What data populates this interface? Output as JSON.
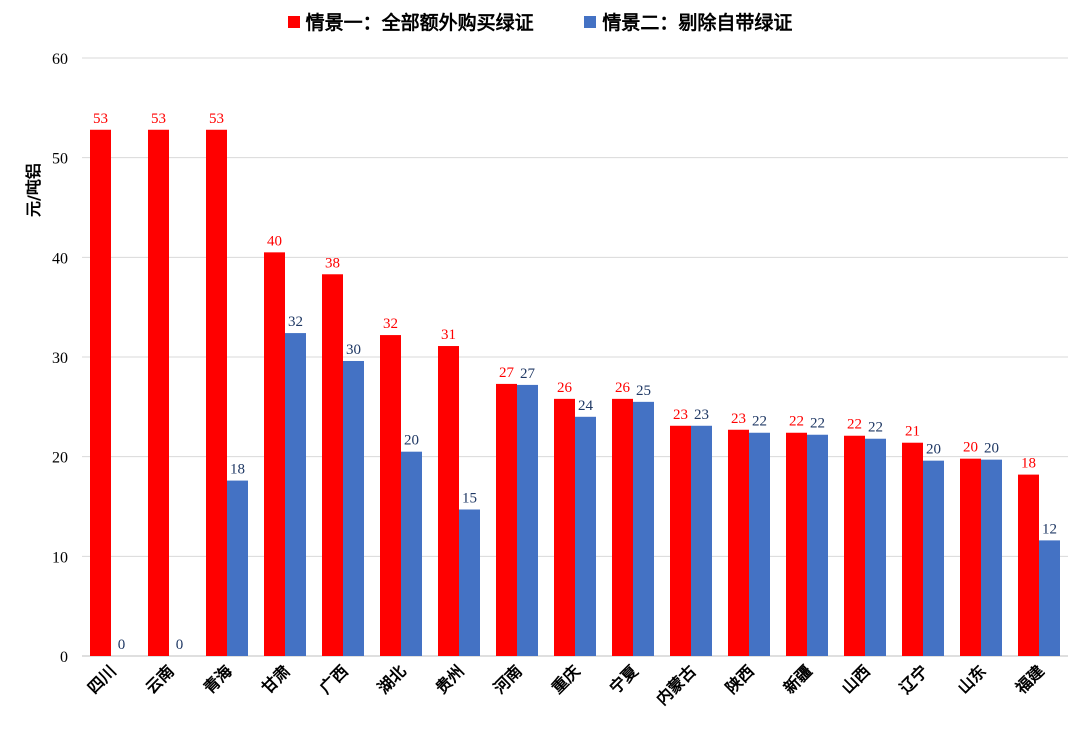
{
  "chart_data": {
    "type": "bar",
    "title": "",
    "xlabel": "",
    "ylabel": "元/吨铝",
    "ylim": [
      0,
      60
    ],
    "yticks": [
      0,
      10,
      20,
      30,
      40,
      50,
      60
    ],
    "grid": true,
    "legend_position": "top",
    "categories": [
      "四川",
      "云南",
      "青海",
      "甘肃",
      "广西",
      "湖北",
      "贵州",
      "河南",
      "重庆",
      "宁夏",
      "内蒙古",
      "陕西",
      "新疆",
      "山西",
      "辽宁",
      "山东",
      "福建"
    ],
    "series": [
      {
        "name": "情景一：全部额外购买绿证",
        "color": "#ff0000",
        "label_color": "#ff0000",
        "values": [
          52.8,
          52.8,
          52.8,
          40.5,
          38.3,
          32.2,
          31.1,
          27.3,
          25.8,
          25.8,
          23.1,
          22.7,
          22.4,
          22.1,
          21.4,
          19.8,
          18.2
        ],
        "labels": [
          "53",
          "53",
          "53",
          "40",
          "38",
          "32",
          "31",
          "27",
          "26",
          "26",
          "23",
          "23",
          "22",
          "22",
          "21",
          "20",
          "18"
        ]
      },
      {
        "name": "情景二：剔除自带绿证",
        "color": "#4472c4",
        "label_color": "#1f3864",
        "values": [
          0,
          0,
          17.6,
          32.4,
          29.6,
          20.5,
          14.7,
          27.2,
          24.0,
          25.5,
          23.1,
          22.4,
          22.2,
          21.8,
          19.6,
          19.7,
          11.6
        ],
        "labels": [
          "0",
          "0",
          "18",
          "32",
          "30",
          "20",
          "15",
          "27",
          "24",
          "25",
          "23",
          "22",
          "22",
          "22",
          "20",
          "20",
          "12"
        ]
      }
    ]
  }
}
